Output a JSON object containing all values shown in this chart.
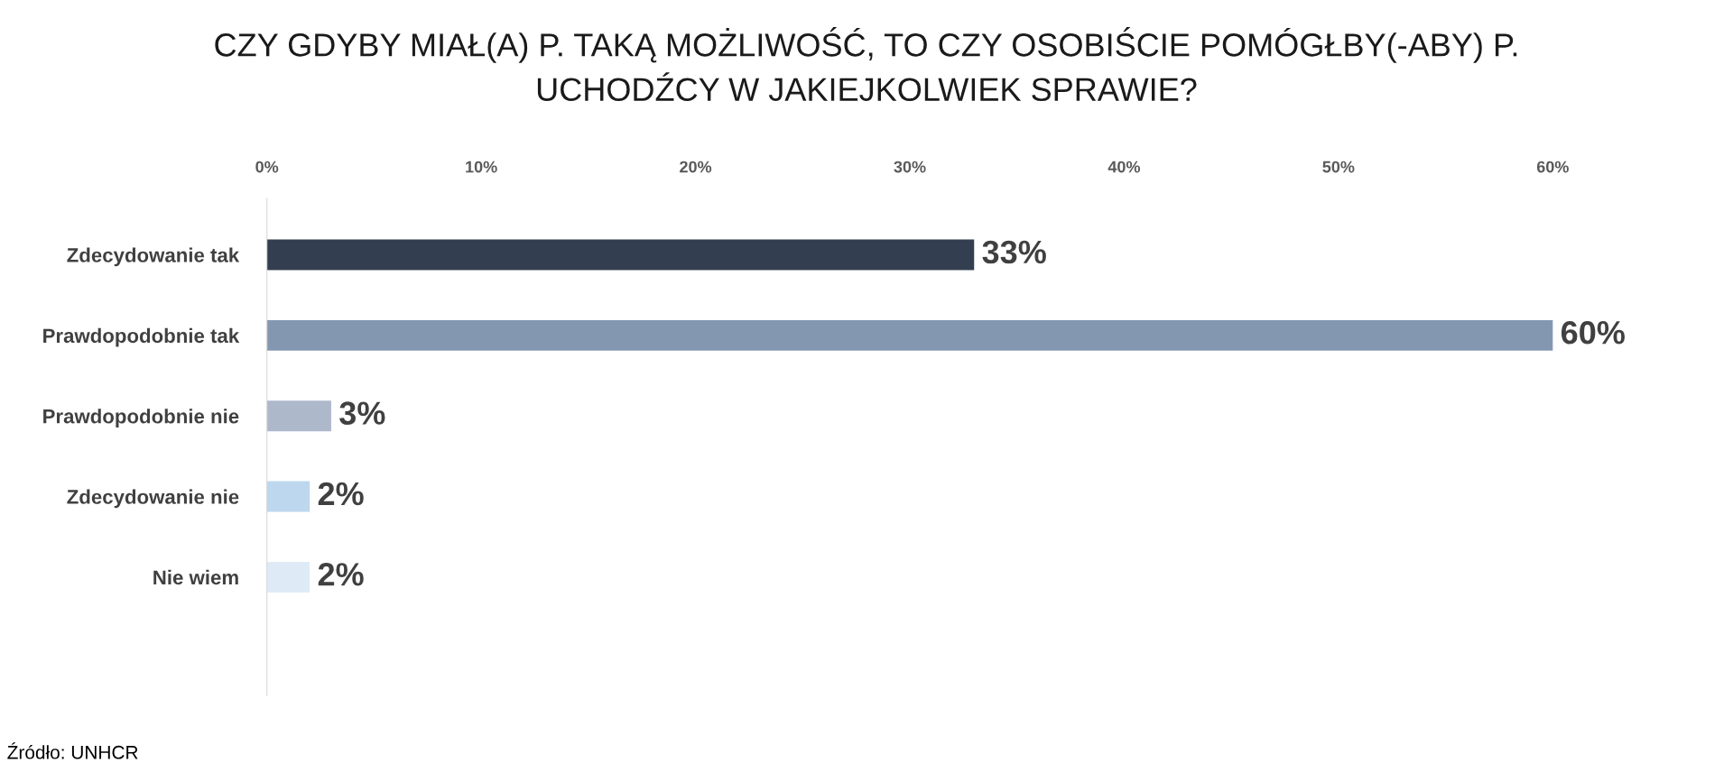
{
  "chart_data": {
    "type": "bar",
    "orientation": "horizontal",
    "title": "CZY GDYBY MIAŁ(A) P. TAKĄ MOŻLIWOŚĆ, TO CZY OSOBIŚCIE POMÓGŁBY(-ABY) P.\nUCHODŹCY W JAKIEJKOLWIEK SPRAWIE?",
    "categories": [
      "Zdecydowanie tak",
      "Prawdopodobnie tak",
      "Prawdopodobnie nie",
      "Zdecydowanie nie",
      "Nie wiem"
    ],
    "values": [
      33,
      60,
      3,
      2,
      2
    ],
    "colors": [
      "#333f50",
      "#8497b0",
      "#adb9ca",
      "#bdd7ee",
      "#deebf7"
    ],
    "value_labels": [
      "33%",
      "60%",
      "3%",
      "2%",
      "2%"
    ],
    "xlim": [
      0,
      60
    ],
    "xticks": [
      {
        "value": 0,
        "label": "0%"
      },
      {
        "value": 10,
        "label": "10%"
      },
      {
        "value": 20,
        "label": "20%"
      },
      {
        "value": 30,
        "label": "30%"
      },
      {
        "value": 40,
        "label": "40%"
      },
      {
        "value": 50,
        "label": "50%"
      },
      {
        "value": 60,
        "label": "60%"
      }
    ],
    "grid": false,
    "legend": false,
    "annotations": [
      "Źródło: UNHCR"
    ]
  }
}
